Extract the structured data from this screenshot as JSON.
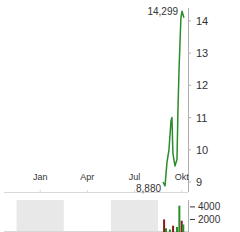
{
  "chart_data": [
    {
      "type": "line",
      "x": [
        7.81,
        7.94,
        8.06,
        8.19,
        8.32,
        8.38,
        8.44,
        8.57,
        8.7,
        8.76,
        8.83,
        8.89,
        8.95,
        9.02,
        9.14
      ],
      "values": [
        9.0,
        8.88,
        9.6,
        10.0,
        10.9,
        11.0,
        9.9,
        9.5,
        9.7,
        11.2,
        12.5,
        13.3,
        14.1,
        14.299,
        14.1
      ],
      "color": "#2a8c2a",
      "xlim": [
        -2.3,
        9.4
      ],
      "xticks": [
        {
          "value": 0,
          "label": "Jan"
        },
        {
          "value": 3,
          "label": "Apr"
        },
        {
          "value": 6,
          "label": "Jul"
        },
        {
          "value": 9,
          "label": "Okt"
        }
      ],
      "ylim": [
        8.69,
        14.4
      ],
      "yticks": [
        9,
        10,
        11,
        12,
        13,
        14
      ],
      "annotations": [
        {
          "x": 9.02,
          "y": 14.299,
          "label": "14,299"
        },
        {
          "x": 7.94,
          "y": 8.88,
          "label": "8,880"
        }
      ]
    },
    {
      "type": "bar",
      "x": [
        7.88,
        8.0,
        8.25,
        8.45,
        8.7,
        8.85,
        9.0,
        9.1
      ],
      "values": [
        2000,
        600,
        400,
        1000,
        800,
        4200,
        1800,
        1200
      ],
      "colors": [
        "#8b1a1a",
        "#2a8c2a",
        "#2a8c2a",
        "#8b1a1a",
        "#2a8c2a",
        "#2a8c2a",
        "#8b1a1a",
        "#2a8c2a"
      ],
      "xlim": [
        -2.3,
        9.4
      ],
      "ylim": [
        0,
        5100
      ],
      "yticks": [
        2000,
        4000
      ]
    }
  ]
}
